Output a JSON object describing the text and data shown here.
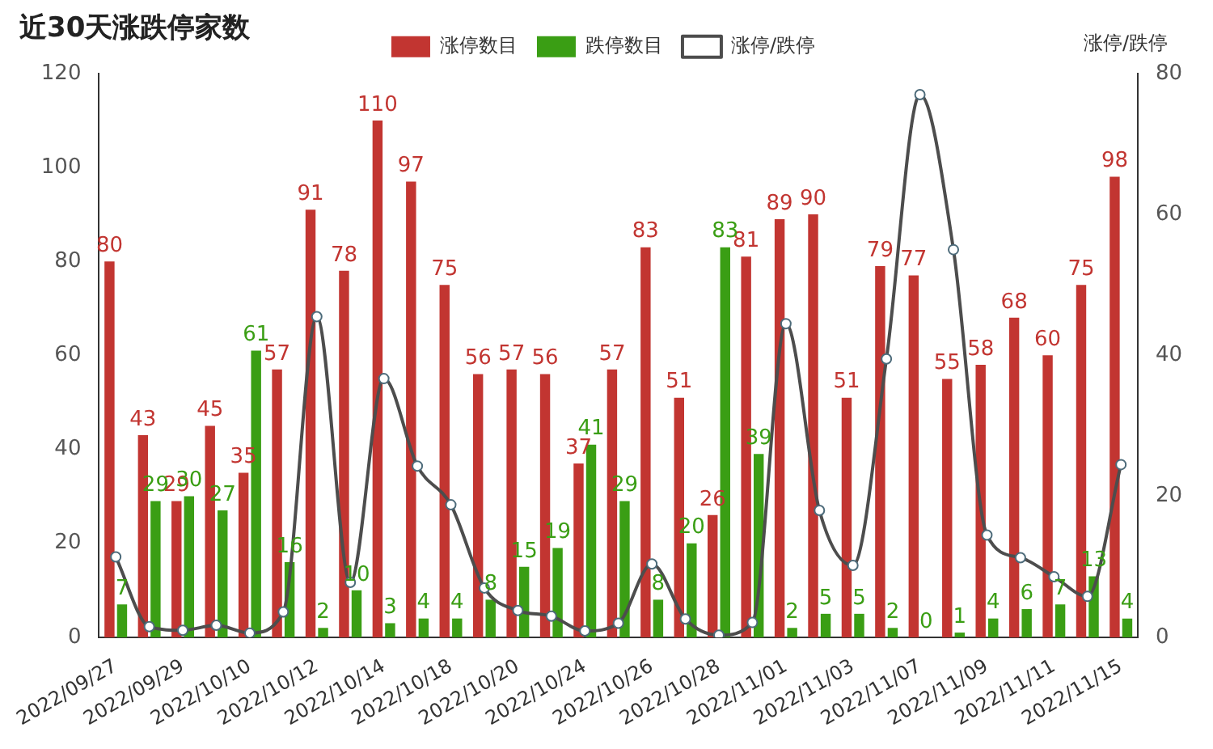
{
  "chart_data": {
    "type": "bar",
    "title": "近30天涨跌停家数",
    "y2label": "涨停/跌停",
    "legend": "top",
    "categories": [
      "2022/09/27",
      null,
      "2022/09/29",
      null,
      "2022/10/10",
      null,
      "2022/10/12",
      null,
      "2022/10/14",
      null,
      "2022/10/18",
      null,
      "2022/10/20",
      null,
      "2022/10/24",
      null,
      "2022/10/26",
      null,
      "2022/10/28",
      null,
      "2022/11/01",
      null,
      "2022/11/03",
      null,
      "2022/11/07",
      null,
      "2022/11/09",
      null,
      "2022/11/11",
      null,
      "2022/11/15"
    ],
    "ylim": [
      0,
      120
    ],
    "yticks": [
      0,
      20,
      40,
      60,
      80,
      100,
      120
    ],
    "y2lim": [
      0,
      80
    ],
    "y2ticks": [
      0,
      20,
      40,
      60,
      80
    ],
    "series": [
      {
        "name": "涨停数目",
        "color": "#c23531",
        "data_labels": true,
        "values": [
          80,
          43,
          29,
          45,
          35,
          57,
          91,
          78,
          110,
          97,
          75,
          56,
          57,
          56,
          37,
          57,
          83,
          51,
          26,
          81,
          89,
          90,
          51,
          79,
          77,
          55,
          58,
          68,
          60,
          75,
          98
        ]
      },
      {
        "name": "跌停数目",
        "color": "#3a9e14",
        "data_labels": true,
        "values": [
          7,
          29,
          30,
          27,
          61,
          16,
          2,
          10,
          3,
          4,
          4,
          8,
          15,
          19,
          41,
          29,
          8,
          20,
          83,
          39,
          2,
          5,
          5,
          2,
          0,
          1,
          4,
          6,
          7,
          13,
          4
        ]
      },
      {
        "name": "涨停/跌停",
        "type": "line",
        "axis": "y2",
        "marker": "circle",
        "color": "#4d4d4d",
        "values": [
          11.4,
          1.5,
          1,
          1.7,
          0.6,
          3.6,
          45.5,
          7.8,
          36.7,
          24.3,
          18.8,
          7,
          3.8,
          3,
          0.9,
          2,
          10.4,
          2.6,
          0.3,
          2.1,
          44.5,
          18,
          10.2,
          39.5,
          77,
          55,
          14.5,
          11.3,
          8.6,
          5.8,
          24.5
        ]
      }
    ]
  }
}
